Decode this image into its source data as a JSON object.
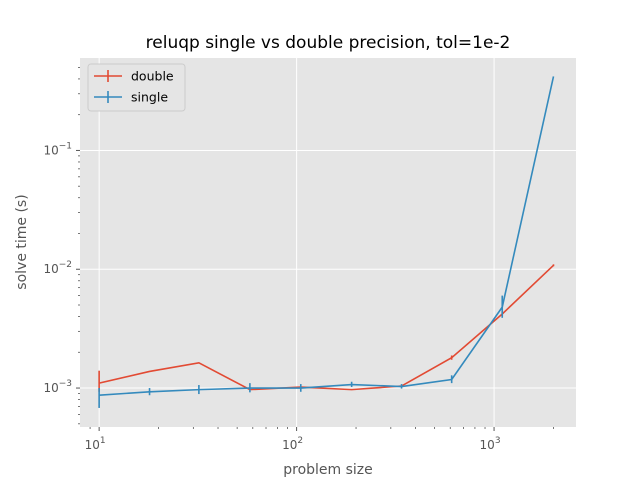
{
  "chart_data": {
    "type": "line",
    "title": "reluqp single vs double precision, tol=1e-2",
    "xlabel": "problem size",
    "ylabel": "solve time (s)",
    "xscale": "log",
    "yscale": "log",
    "xlim": [
      8,
      2600
    ],
    "ylim": [
      0.00047,
      0.6
    ],
    "grid": true,
    "legend_position": "top-left",
    "xticks": [
      {
        "value": 10,
        "base": "10",
        "exp": "1"
      },
      {
        "value": 100,
        "base": "10",
        "exp": "2"
      },
      {
        "value": 1000,
        "base": "10",
        "exp": "3"
      }
    ],
    "yticks": [
      {
        "value": 0.001,
        "base": "10",
        "exp": "−3"
      },
      {
        "value": 0.01,
        "base": "10",
        "exp": "−2"
      },
      {
        "value": 0.1,
        "base": "10",
        "exp": "−1"
      }
    ],
    "series": [
      {
        "name": "double",
        "color": "#e24a33",
        "x": [
          10,
          18,
          32,
          58,
          105,
          190,
          340,
          610,
          1100,
          2000
        ],
        "y": [
          0.0011,
          0.00138,
          0.00163,
          0.00097,
          0.00102,
          0.00097,
          0.00104,
          0.0018,
          0.0042,
          0.0108
        ],
        "err_low": [
          0.00093,
          0.00138,
          0.00163,
          0.00097,
          0.00102,
          0.00097,
          0.00104,
          0.00173,
          0.004,
          0.0106
        ],
        "err_high": [
          0.0014,
          0.00138,
          0.00163,
          0.00097,
          0.00102,
          0.00097,
          0.00104,
          0.00188,
          0.0044,
          0.011
        ]
      },
      {
        "name": "single",
        "color": "#348abd",
        "x": [
          10,
          18,
          32,
          58,
          105,
          190,
          340,
          610,
          1100,
          2000
        ],
        "y": [
          0.00087,
          0.00093,
          0.00097,
          0.001,
          0.001,
          0.00107,
          0.00103,
          0.00118,
          0.0048,
          0.42
        ],
        "err_low": [
          0.00068,
          0.00087,
          0.00089,
          0.00092,
          0.00093,
          0.00102,
          0.00099,
          0.0011,
          0.0039,
          0.42
        ],
        "err_high": [
          0.001,
          0.001,
          0.00106,
          0.0011,
          0.00108,
          0.00113,
          0.00108,
          0.00128,
          0.006,
          0.42
        ]
      }
    ]
  }
}
